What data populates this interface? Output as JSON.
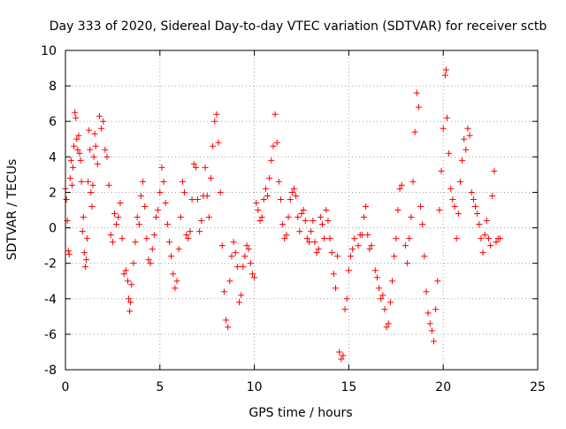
{
  "chart_data": {
    "type": "scatter",
    "title": "Day 333 of 2020, Sidereal Day-to-day VTEC variation (SDTVAR) for receiver sctb",
    "xlabel": "GPS time / hours",
    "ylabel": "SDTVAR / TECUs",
    "xlim": [
      0,
      25
    ],
    "ylim": [
      -8,
      10
    ],
    "xticks": [
      0,
      5,
      10,
      15,
      20,
      25
    ],
    "yticks": [
      -8,
      -6,
      -4,
      -2,
      0,
      2,
      4,
      6,
      8,
      10
    ],
    "grid": true,
    "marker": "+",
    "color": "#ff0000",
    "series": [
      {
        "name": "sctb",
        "points": [
          [
            0.0,
            2.2
          ],
          [
            0.05,
            1.6
          ],
          [
            0.1,
            0.4
          ],
          [
            0.15,
            -1.3
          ],
          [
            0.2,
            -1.5
          ],
          [
            0.25,
            2.8
          ],
          [
            0.3,
            3.8
          ],
          [
            0.35,
            2.4
          ],
          [
            0.4,
            3.4
          ],
          [
            0.45,
            4.6
          ],
          [
            0.5,
            6.5
          ],
          [
            0.55,
            6.2
          ],
          [
            0.6,
            5.0
          ],
          [
            0.65,
            4.4
          ],
          [
            0.7,
            5.2
          ],
          [
            0.75,
            4.2
          ],
          [
            0.8,
            3.8
          ],
          [
            0.85,
            2.6
          ],
          [
            0.9,
            -0.2
          ],
          [
            0.95,
            0.6
          ],
          [
            1.0,
            -1.4
          ],
          [
            1.05,
            -2.2
          ],
          [
            1.1,
            -1.8
          ],
          [
            1.15,
            -0.6
          ],
          [
            1.2,
            2.6
          ],
          [
            1.25,
            5.5
          ],
          [
            1.3,
            4.4
          ],
          [
            1.35,
            2.0
          ],
          [
            1.4,
            1.2
          ],
          [
            1.45,
            2.4
          ],
          [
            1.5,
            4.0
          ],
          [
            1.55,
            5.3
          ],
          [
            1.6,
            4.6
          ],
          [
            1.7,
            3.6
          ],
          [
            1.8,
            6.3
          ],
          [
            1.9,
            5.6
          ],
          [
            2.0,
            6.0
          ],
          [
            2.1,
            4.4
          ],
          [
            2.2,
            4.0
          ],
          [
            2.3,
            2.4
          ],
          [
            2.4,
            -0.4
          ],
          [
            2.5,
            -0.8
          ],
          [
            2.6,
            0.8
          ],
          [
            2.7,
            0.2
          ],
          [
            2.8,
            0.6
          ],
          [
            2.9,
            1.4
          ],
          [
            3.0,
            -0.6
          ],
          [
            3.1,
            -2.6
          ],
          [
            3.2,
            -2.4
          ],
          [
            3.3,
            -3.0
          ],
          [
            3.35,
            -4.0
          ],
          [
            3.4,
            -4.7
          ],
          [
            3.45,
            -4.2
          ],
          [
            3.5,
            -3.2
          ],
          [
            3.6,
            -2.0
          ],
          [
            3.7,
            -0.8
          ],
          [
            3.8,
            0.6
          ],
          [
            3.9,
            0.2
          ],
          [
            4.0,
            1.8
          ],
          [
            4.1,
            2.6
          ],
          [
            4.2,
            1.2
          ],
          [
            4.3,
            -0.6
          ],
          [
            4.4,
            -1.8
          ],
          [
            4.5,
            -2.0
          ],
          [
            4.6,
            -1.2
          ],
          [
            4.7,
            -0.4
          ],
          [
            4.8,
            0.6
          ],
          [
            4.9,
            1.0
          ],
          [
            5.0,
            2.0
          ],
          [
            5.1,
            3.4
          ],
          [
            5.2,
            2.6
          ],
          [
            5.3,
            1.4
          ],
          [
            5.4,
            0.2
          ],
          [
            5.5,
            -0.8
          ],
          [
            5.6,
            -1.6
          ],
          [
            5.7,
            -2.6
          ],
          [
            5.8,
            -3.4
          ],
          [
            5.9,
            -3.0
          ],
          [
            6.0,
            -1.2
          ],
          [
            6.1,
            0.6
          ],
          [
            6.2,
            2.6
          ],
          [
            6.3,
            2.0
          ],
          [
            6.4,
            -0.4
          ],
          [
            6.5,
            -0.6
          ],
          [
            6.6,
            -0.2
          ],
          [
            6.7,
            1.6
          ],
          [
            6.8,
            3.6
          ],
          [
            6.9,
            3.4
          ],
          [
            7.0,
            1.6
          ],
          [
            7.1,
            -0.2
          ],
          [
            7.2,
            0.4
          ],
          [
            7.3,
            1.8
          ],
          [
            7.4,
            3.4
          ],
          [
            7.5,
            1.8
          ],
          [
            7.6,
            0.6
          ],
          [
            7.7,
            2.8
          ],
          [
            7.8,
            4.6
          ],
          [
            7.9,
            6.0
          ],
          [
            8.0,
            6.4
          ],
          [
            8.1,
            4.8
          ],
          [
            8.2,
            2.0
          ],
          [
            8.3,
            -1.0
          ],
          [
            8.4,
            -3.6
          ],
          [
            8.5,
            -5.2
          ],
          [
            8.6,
            -5.6
          ],
          [
            8.7,
            -3.0
          ],
          [
            8.8,
            -1.6
          ],
          [
            8.9,
            -0.8
          ],
          [
            9.0,
            -1.4
          ],
          [
            9.1,
            -2.2
          ],
          [
            9.2,
            -4.2
          ],
          [
            9.3,
            -3.8
          ],
          [
            9.4,
            -2.2
          ],
          [
            9.5,
            -1.6
          ],
          [
            9.6,
            -1.0
          ],
          [
            9.7,
            -1.2
          ],
          [
            9.8,
            -2.0
          ],
          [
            9.9,
            -2.6
          ],
          [
            10.0,
            -2.8
          ],
          [
            10.1,
            1.4
          ],
          [
            10.2,
            1.0
          ],
          [
            10.3,
            0.4
          ],
          [
            10.4,
            0.6
          ],
          [
            10.5,
            1.6
          ],
          [
            10.6,
            2.2
          ],
          [
            10.7,
            1.8
          ],
          [
            10.8,
            2.8
          ],
          [
            10.9,
            3.8
          ],
          [
            11.0,
            4.6
          ],
          [
            11.1,
            6.4
          ],
          [
            11.2,
            4.8
          ],
          [
            11.3,
            2.6
          ],
          [
            11.4,
            1.6
          ],
          [
            11.5,
            0.2
          ],
          [
            11.6,
            -0.6
          ],
          [
            11.7,
            -0.4
          ],
          [
            11.8,
            0.6
          ],
          [
            11.9,
            1.6
          ],
          [
            12.0,
            2.0
          ],
          [
            12.1,
            2.2
          ],
          [
            12.2,
            1.8
          ],
          [
            12.3,
            0.6
          ],
          [
            12.4,
            -0.2
          ],
          [
            12.5,
            0.8
          ],
          [
            12.6,
            1.0
          ],
          [
            12.7,
            0.4
          ],
          [
            12.8,
            -0.6
          ],
          [
            12.9,
            -0.8
          ],
          [
            13.0,
            -0.2
          ],
          [
            13.1,
            0.4
          ],
          [
            13.2,
            -0.8
          ],
          [
            13.3,
            -1.4
          ],
          [
            13.4,
            -1.2
          ],
          [
            13.5,
            0.6
          ],
          [
            13.6,
            0.2
          ],
          [
            13.7,
            -0.6
          ],
          [
            13.8,
            1.0
          ],
          [
            13.9,
            0.4
          ],
          [
            14.0,
            -0.6
          ],
          [
            14.1,
            -1.4
          ],
          [
            14.2,
            -2.6
          ],
          [
            14.3,
            -3.4
          ],
          [
            14.4,
            -1.6
          ],
          [
            14.5,
            -7.0
          ],
          [
            14.6,
            -7.4
          ],
          [
            14.7,
            -7.2
          ],
          [
            14.8,
            -4.6
          ],
          [
            14.9,
            -4.0
          ],
          [
            15.0,
            -2.4
          ],
          [
            15.1,
            -1.6
          ],
          [
            15.2,
            -1.2
          ],
          [
            15.3,
            -0.6
          ],
          [
            15.5,
            -1.0
          ],
          [
            15.6,
            -0.4
          ],
          [
            15.7,
            -0.4
          ],
          [
            15.8,
            0.6
          ],
          [
            15.9,
            1.2
          ],
          [
            16.0,
            -0.4
          ],
          [
            16.1,
            -1.2
          ],
          [
            16.2,
            -1.0
          ],
          [
            16.4,
            -2.4
          ],
          [
            16.5,
            -2.8
          ],
          [
            16.6,
            -3.4
          ],
          [
            16.7,
            -4.0
          ],
          [
            16.8,
            -3.8
          ],
          [
            16.9,
            -4.6
          ],
          [
            17.0,
            -5.6
          ],
          [
            17.1,
            -5.4
          ],
          [
            17.2,
            -4.2
          ],
          [
            17.3,
            -3.0
          ],
          [
            17.4,
            -1.6
          ],
          [
            17.5,
            -0.6
          ],
          [
            17.6,
            1.0
          ],
          [
            17.7,
            2.2
          ],
          [
            17.8,
            2.4
          ],
          [
            18.0,
            -1.0
          ],
          [
            18.1,
            -2.0
          ],
          [
            18.2,
            -0.6
          ],
          [
            18.3,
            0.6
          ],
          [
            18.4,
            2.6
          ],
          [
            18.5,
            5.4
          ],
          [
            18.6,
            7.6
          ],
          [
            18.7,
            6.8
          ],
          [
            18.8,
            1.2
          ],
          [
            18.9,
            0.2
          ],
          [
            19.0,
            -1.6
          ],
          [
            19.1,
            -3.6
          ],
          [
            19.2,
            -4.8
          ],
          [
            19.3,
            -5.4
          ],
          [
            19.4,
            -5.8
          ],
          [
            19.5,
            -6.4
          ],
          [
            19.6,
            -4.6
          ],
          [
            19.7,
            -3.0
          ],
          [
            19.8,
            1.0
          ],
          [
            19.9,
            3.2
          ],
          [
            20.0,
            5.6
          ],
          [
            20.1,
            8.6
          ],
          [
            20.15,
            8.9
          ],
          [
            20.2,
            6.2
          ],
          [
            20.3,
            4.2
          ],
          [
            20.4,
            2.2
          ],
          [
            20.5,
            1.6
          ],
          [
            20.6,
            1.2
          ],
          [
            20.7,
            -0.6
          ],
          [
            20.8,
            0.8
          ],
          [
            20.9,
            2.6
          ],
          [
            21.0,
            3.8
          ],
          [
            21.1,
            5.0
          ],
          [
            21.2,
            4.4
          ],
          [
            21.3,
            5.6
          ],
          [
            21.4,
            5.2
          ],
          [
            21.5,
            2.0
          ],
          [
            21.6,
            1.6
          ],
          [
            21.7,
            1.2
          ],
          [
            21.8,
            0.8
          ],
          [
            21.9,
            0.2
          ],
          [
            22.0,
            -0.6
          ],
          [
            22.1,
            -1.4
          ],
          [
            22.2,
            -0.4
          ],
          [
            22.3,
            0.4
          ],
          [
            22.4,
            -0.6
          ],
          [
            22.5,
            -1.0
          ],
          [
            22.6,
            1.8
          ],
          [
            22.7,
            3.2
          ],
          [
            22.8,
            -0.8
          ],
          [
            22.9,
            -0.6
          ],
          [
            23.0,
            -0.6
          ]
        ]
      }
    ]
  }
}
